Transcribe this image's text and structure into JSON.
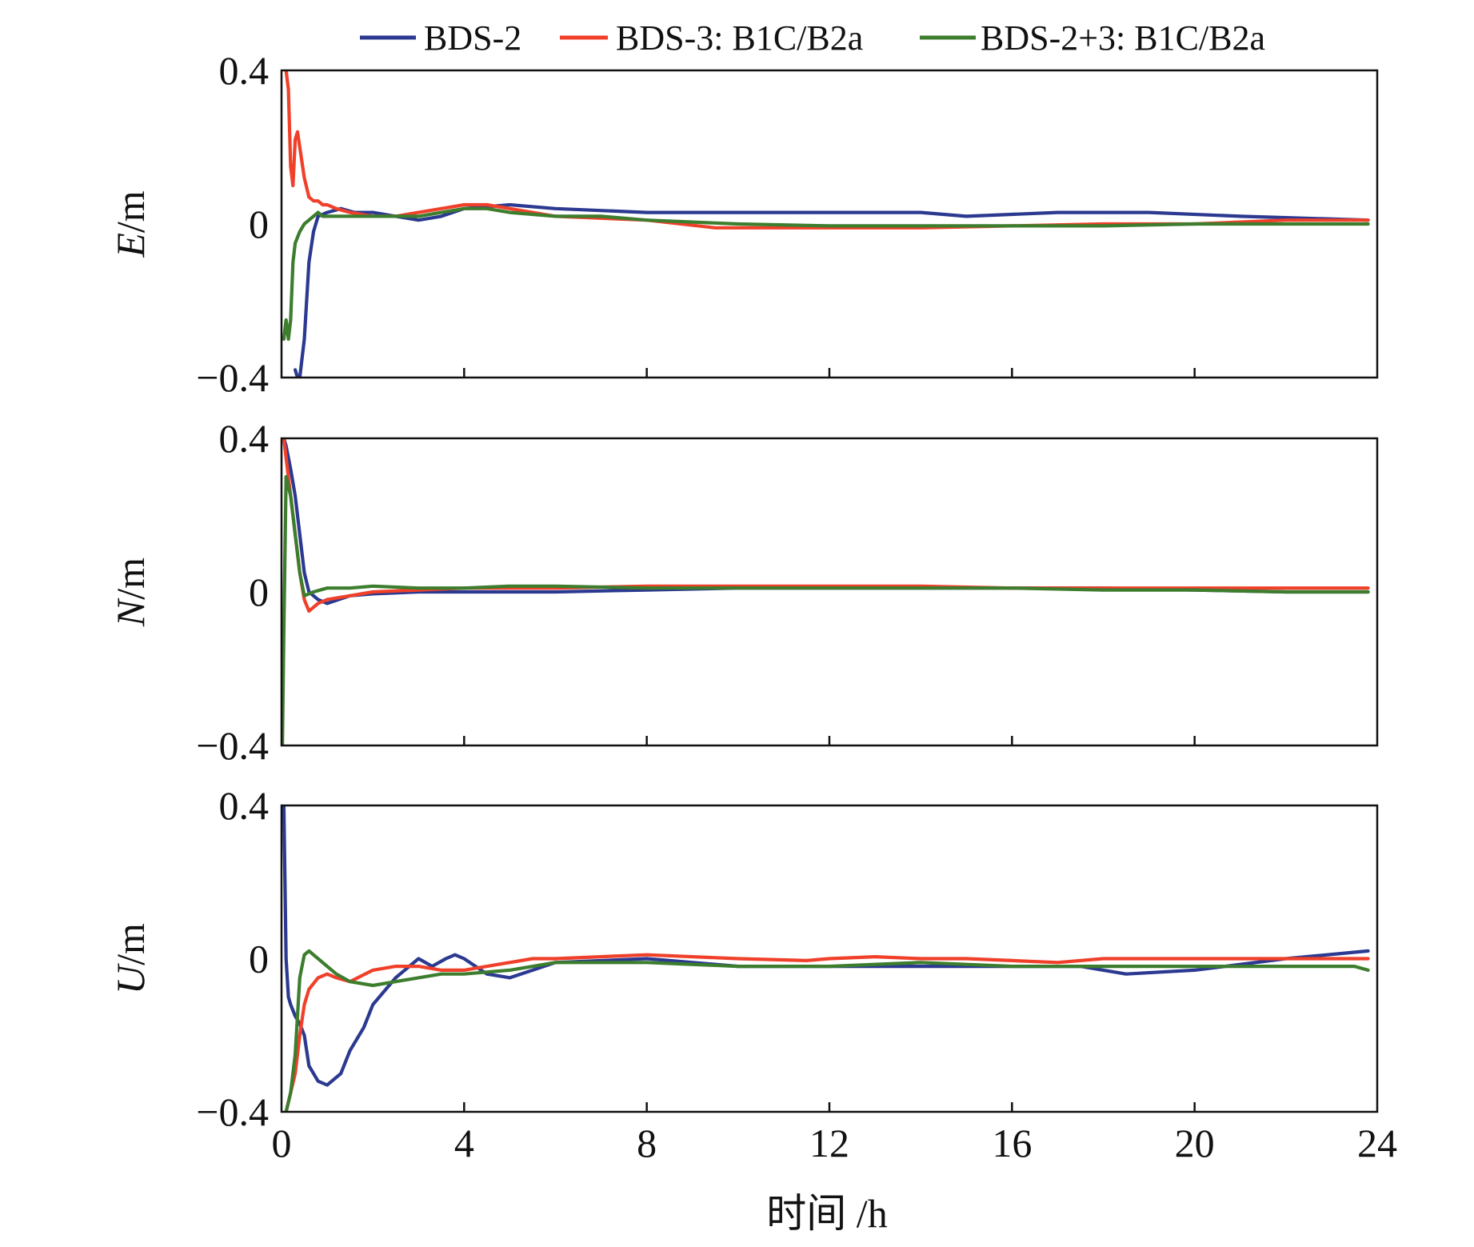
{
  "chart_data": {
    "type": "line",
    "xlabel": "时间 /h",
    "xlim": [
      0,
      24
    ],
    "xticks": [
      0,
      4,
      8,
      12,
      16,
      20,
      24
    ],
    "legend_position": "top",
    "series_meta": [
      {
        "name": "BDS-2",
        "color": "#2b3990"
      },
      {
        "name": "BDS-3: B1C/B2a",
        "color": "#f0402a"
      },
      {
        "name": "BDS-2+3: B1C/B2a",
        "color": "#3d7d2e"
      }
    ],
    "panels": [
      {
        "ylabel_italic": "E",
        "ylabel_unit": "/m",
        "ylim": [
          -0.4,
          0.4
        ],
        "yticks": [
          {
            "v": 0.4,
            "t": "0.4"
          },
          {
            "v": 0,
            "t": "0"
          },
          {
            "v": -0.4,
            "t": "−0.4"
          }
        ],
        "series": [
          {
            "name": "BDS-2",
            "x": [
              0.3,
              0.35,
              0.4,
              0.5,
              0.6,
              0.7,
              0.8,
              1.0,
              1.3,
              1.6,
              2.0,
              2.5,
              3.0,
              3.5,
              4.0,
              5.0,
              6.0,
              8.0,
              10.0,
              12.0,
              14.0,
              15.0,
              17.0,
              19.0,
              21.0,
              23.8
            ],
            "y": [
              -0.38,
              -0.4,
              -0.4,
              -0.3,
              -0.1,
              -0.02,
              0.02,
              0.03,
              0.04,
              0.03,
              0.03,
              0.02,
              0.01,
              0.02,
              0.04,
              0.05,
              0.04,
              0.03,
              0.03,
              0.03,
              0.03,
              0.02,
              0.03,
              0.03,
              0.02,
              0.01
            ]
          },
          {
            "name": "BDS-3: B1C/B2a",
            "x": [
              0.1,
              0.15,
              0.2,
              0.25,
              0.3,
              0.35,
              0.4,
              0.5,
              0.6,
              0.7,
              0.8,
              0.9,
              1.0,
              1.2,
              1.5,
              2.0,
              2.5,
              3.0,
              3.5,
              4.0,
              4.5,
              5.0,
              6.0,
              8.0,
              9.5,
              10.0,
              12.0,
              14.0,
              16.0,
              18.0,
              20.0,
              22.0,
              23.8
            ],
            "y": [
              0.4,
              0.35,
              0.15,
              0.1,
              0.22,
              0.24,
              0.2,
              0.12,
              0.07,
              0.06,
              0.06,
              0.05,
              0.05,
              0.04,
              0.03,
              0.02,
              0.02,
              0.03,
              0.04,
              0.05,
              0.05,
              0.04,
              0.02,
              0.01,
              -0.01,
              -0.01,
              -0.01,
              -0.01,
              -0.005,
              0.0,
              0.0,
              0.01,
              0.01
            ]
          },
          {
            "name": "BDS-2+3: B1C/B2a",
            "x": [
              0.05,
              0.1,
              0.15,
              0.2,
              0.25,
              0.3,
              0.4,
              0.5,
              0.7,
              0.8,
              0.9,
              1.0,
              1.2,
              1.5,
              2.0,
              2.5,
              3.0,
              3.5,
              4.0,
              4.5,
              5.0,
              6.0,
              7.0,
              8.0,
              10.0,
              12.0,
              14.0,
              16.0,
              18.0,
              20.0,
              22.0,
              23.8
            ],
            "y": [
              -0.3,
              -0.25,
              -0.3,
              -0.25,
              -0.1,
              -0.05,
              -0.02,
              0.0,
              0.02,
              0.03,
              0.02,
              0.02,
              0.02,
              0.02,
              0.02,
              0.02,
              0.02,
              0.03,
              0.04,
              0.04,
              0.03,
              0.02,
              0.02,
              0.01,
              0.0,
              -0.005,
              -0.005,
              -0.005,
              -0.005,
              0.0,
              0.0,
              0.0
            ]
          }
        ]
      },
      {
        "ylabel_italic": "N",
        "ylabel_unit": "/m",
        "ylim": [
          -0.4,
          0.4
        ],
        "yticks": [
          {
            "v": 0.4,
            "t": "0.4"
          },
          {
            "v": 0,
            "t": "0"
          },
          {
            "v": -0.4,
            "t": "−0.4"
          }
        ],
        "series": [
          {
            "name": "BDS-2",
            "x": [
              0.05,
              0.1,
              0.2,
              0.3,
              0.4,
              0.5,
              0.6,
              0.8,
              1.0,
              1.5,
              2.0,
              3.0,
              4.0,
              6.0,
              8.0,
              10.0,
              12.0,
              14.0,
              16.0,
              18.0,
              20.0,
              22.0,
              23.8
            ],
            "y": [
              0.4,
              0.38,
              0.32,
              0.25,
              0.15,
              0.05,
              0.0,
              -0.02,
              -0.03,
              -0.01,
              -0.005,
              0.0,
              0.0,
              0.0,
              0.005,
              0.01,
              0.01,
              0.01,
              0.01,
              0.01,
              0.005,
              0.0,
              0.0
            ]
          },
          {
            "name": "BDS-3: B1C/B2a",
            "x": [
              0.05,
              0.1,
              0.2,
              0.3,
              0.4,
              0.5,
              0.6,
              0.7,
              0.8,
              1.0,
              1.5,
              2.0,
              3.0,
              4.0,
              6.0,
              8.0,
              10.0,
              12.0,
              14.0,
              16.0,
              18.0,
              20.0,
              22.0,
              23.8
            ],
            "y": [
              0.4,
              0.35,
              0.25,
              0.15,
              0.05,
              -0.02,
              -0.05,
              -0.04,
              -0.03,
              -0.02,
              -0.01,
              0.0,
              0.005,
              0.01,
              0.01,
              0.015,
              0.015,
              0.015,
              0.015,
              0.01,
              0.01,
              0.01,
              0.01,
              0.01
            ]
          },
          {
            "name": "BDS-2+3: B1C/B2a",
            "x": [
              0.02,
              0.05,
              0.1,
              0.2,
              0.3,
              0.4,
              0.5,
              0.7,
              1.0,
              1.5,
              2.0,
              3.0,
              4.0,
              5.0,
              6.0,
              8.0,
              10.0,
              12.0,
              14.0,
              16.0,
              18.0,
              20.0,
              22.0,
              23.8
            ],
            "y": [
              -0.4,
              -0.1,
              0.3,
              0.25,
              0.15,
              0.05,
              -0.01,
              0.0,
              0.01,
              0.01,
              0.015,
              0.01,
              0.01,
              0.015,
              0.015,
              0.01,
              0.01,
              0.01,
              0.01,
              0.01,
              0.005,
              0.005,
              0.0,
              0.0
            ]
          }
        ]
      },
      {
        "ylabel_italic": "U",
        "ylabel_unit": "/m",
        "ylim": [
          -0.4,
          0.4
        ],
        "yticks": [
          {
            "v": 0.4,
            "t": "0.4"
          },
          {
            "v": 0,
            "t": "0"
          },
          {
            "v": -0.4,
            "t": "−0.4"
          }
        ],
        "series": [
          {
            "name": "BDS-2",
            "x": [
              0.05,
              0.1,
              0.15,
              0.2,
              0.3,
              0.4,
              0.5,
              0.6,
              0.7,
              0.8,
              1.0,
              1.1,
              1.3,
              1.5,
              1.8,
              2.0,
              2.5,
              3.0,
              3.3,
              3.6,
              3.8,
              4.0,
              4.5,
              5.0,
              5.5,
              6.0,
              8.0,
              10.0,
              12.0,
              14.0,
              16.0,
              17.5,
              18.0,
              18.5,
              20.0,
              22.0,
              23.8
            ],
            "y": [
              0.4,
              0.0,
              -0.1,
              -0.12,
              -0.15,
              -0.17,
              -0.2,
              -0.28,
              -0.3,
              -0.32,
              -0.33,
              -0.32,
              -0.3,
              -0.24,
              -0.18,
              -0.12,
              -0.05,
              0.0,
              -0.02,
              0.0,
              0.01,
              0.0,
              -0.04,
              -0.05,
              -0.03,
              -0.01,
              0.0,
              -0.02,
              -0.02,
              -0.02,
              -0.02,
              -0.02,
              -0.03,
              -0.04,
              -0.03,
              0.0,
              0.02
            ]
          },
          {
            "name": "BDS-3: B1C/B2a",
            "x": [
              0.1,
              0.2,
              0.3,
              0.4,
              0.5,
              0.6,
              0.8,
              1.0,
              1.2,
              1.5,
              2.0,
              2.5,
              3.0,
              3.5,
              4.0,
              4.5,
              5.0,
              5.5,
              6.0,
              8.0,
              10.0,
              11.5,
              12.0,
              13.0,
              14.0,
              15.0,
              16.0,
              17.0,
              18.0,
              20.0,
              22.0,
              23.8
            ],
            "y": [
              -0.4,
              -0.35,
              -0.3,
              -0.2,
              -0.12,
              -0.08,
              -0.05,
              -0.04,
              -0.05,
              -0.06,
              -0.03,
              -0.02,
              -0.02,
              -0.03,
              -0.03,
              -0.02,
              -0.01,
              0.0,
              0.0,
              0.01,
              0.0,
              -0.005,
              0.0,
              0.005,
              0.0,
              0.0,
              -0.005,
              -0.01,
              0.0,
              0.0,
              0.0,
              0.0
            ]
          },
          {
            "name": "BDS-2+3: B1C/B2a",
            "x": [
              0.1,
              0.2,
              0.3,
              0.4,
              0.5,
              0.6,
              0.8,
              1.0,
              1.2,
              1.5,
              2.0,
              2.5,
              3.0,
              3.5,
              4.0,
              5.0,
              6.0,
              8.0,
              10.0,
              12.0,
              14.0,
              16.0,
              18.0,
              20.0,
              22.0,
              23.5,
              23.8
            ],
            "y": [
              -0.4,
              -0.35,
              -0.25,
              -0.05,
              0.01,
              0.02,
              0.0,
              -0.02,
              -0.04,
              -0.06,
              -0.07,
              -0.06,
              -0.05,
              -0.04,
              -0.04,
              -0.03,
              -0.01,
              -0.01,
              -0.02,
              -0.02,
              -0.01,
              -0.02,
              -0.02,
              -0.02,
              -0.02,
              -0.02,
              -0.03
            ]
          }
        ]
      }
    ]
  }
}
